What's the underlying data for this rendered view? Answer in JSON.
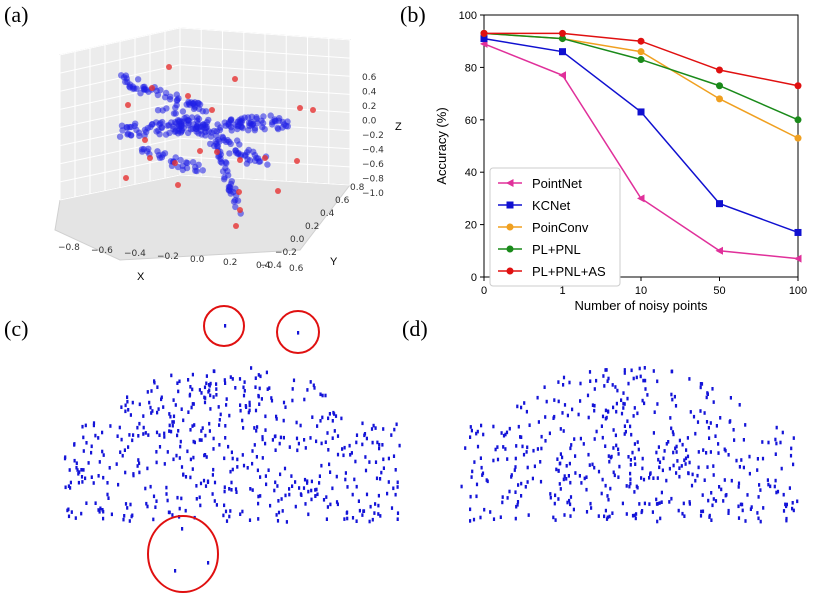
{
  "panels": {
    "a": "(a)",
    "b": "(b)",
    "c": "(c)",
    "d": "(d)"
  },
  "plot3d": {
    "x_ticks": [
      "−0.8",
      "−0.6",
      "−0.4",
      "−0.2",
      "0.0",
      "0.2",
      "0.4",
      "0.6"
    ],
    "y_ticks": [
      "−0.4",
      "−0.2",
      "0.0",
      "0.2",
      "0.4",
      "0.6",
      "0.8"
    ],
    "z_ticks": [
      "0.6",
      "0.4",
      "0.2",
      "0.0",
      "−0.2",
      "−0.4",
      "−0.6",
      "−0.8",
      "−1.0"
    ],
    "xlabel": "X",
    "ylabel": "Y",
    "zlabel": "Z",
    "colors": {
      "points": "#1f1fe6",
      "noise": "#e63232"
    }
  },
  "chart_data": {
    "type": "line",
    "title": "",
    "xlabel": "Number of noisy points",
    "ylabel": "Accuracy (%)",
    "categories": [
      "0",
      "1",
      "10",
      "50",
      "100"
    ],
    "ylim": [
      0,
      100
    ],
    "yticks": [
      0,
      20,
      40,
      60,
      80,
      100
    ],
    "legend_position": "bottom-left",
    "series": [
      {
        "name": "PointNet",
        "color": "#e0309a",
        "marker": "triangle-left",
        "values": [
          89,
          77,
          30,
          10,
          7
        ]
      },
      {
        "name": "KCNet",
        "color": "#1010d0",
        "marker": "square",
        "values": [
          91,
          86,
          63,
          28,
          17
        ]
      },
      {
        "name": "PoinConv",
        "color": "#f0a020",
        "marker": "circle",
        "values": [
          93,
          91,
          86,
          68,
          53
        ]
      },
      {
        "name": "PL+PNL",
        "color": "#1a8a1a",
        "marker": "circle",
        "values": [
          93,
          91,
          83,
          73,
          60
        ]
      },
      {
        "name": "PL+PNL+AS",
        "color": "#e01010",
        "marker": "circle",
        "values": [
          93,
          93,
          90,
          79,
          73
        ]
      }
    ]
  },
  "colors": {
    "cloud": "#1414d8",
    "highlight": "#e01010"
  }
}
